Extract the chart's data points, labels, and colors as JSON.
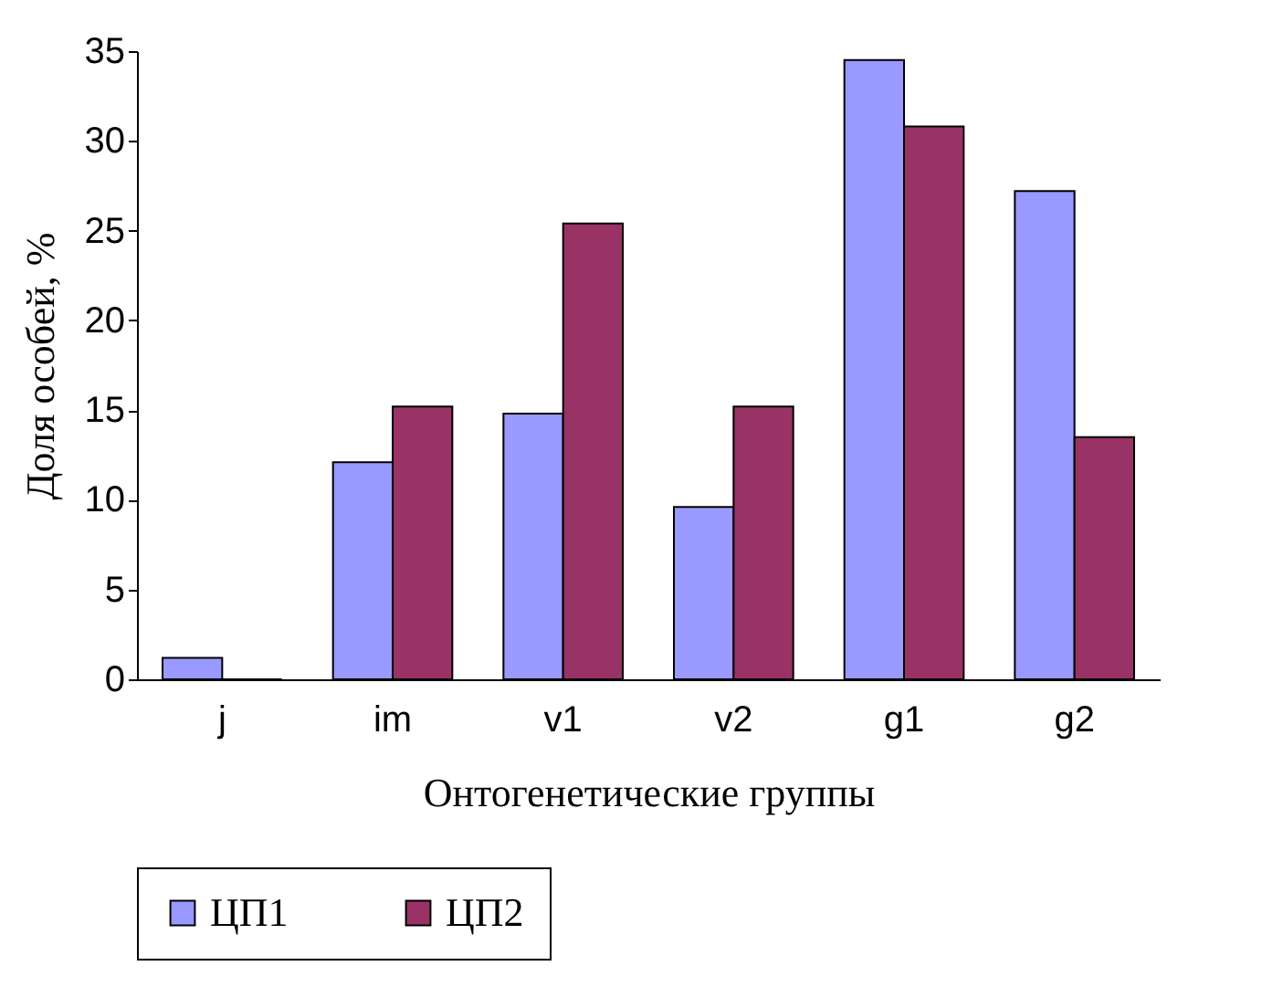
{
  "chart_data": {
    "type": "bar",
    "xlabel": "Онтогенетические группы",
    "ylabel": "Доля особей, %",
    "categories": [
      "j",
      "im",
      "v1",
      "v2",
      "g1",
      "g2"
    ],
    "series": [
      {
        "name": "ЦП1",
        "color": "#9999ff",
        "values": [
          1.2,
          12.1,
          14.8,
          9.6,
          34.5,
          27.2
        ]
      },
      {
        "name": "ЦП2",
        "color": "#993366",
        "values": [
          0,
          15.2,
          25.4,
          15.2,
          30.8,
          13.5
        ]
      }
    ],
    "ylim": [
      0,
      35
    ],
    "yticks": [
      0,
      5,
      10,
      15,
      20,
      25,
      30,
      35
    ],
    "grid": false,
    "legend": "bottom"
  }
}
